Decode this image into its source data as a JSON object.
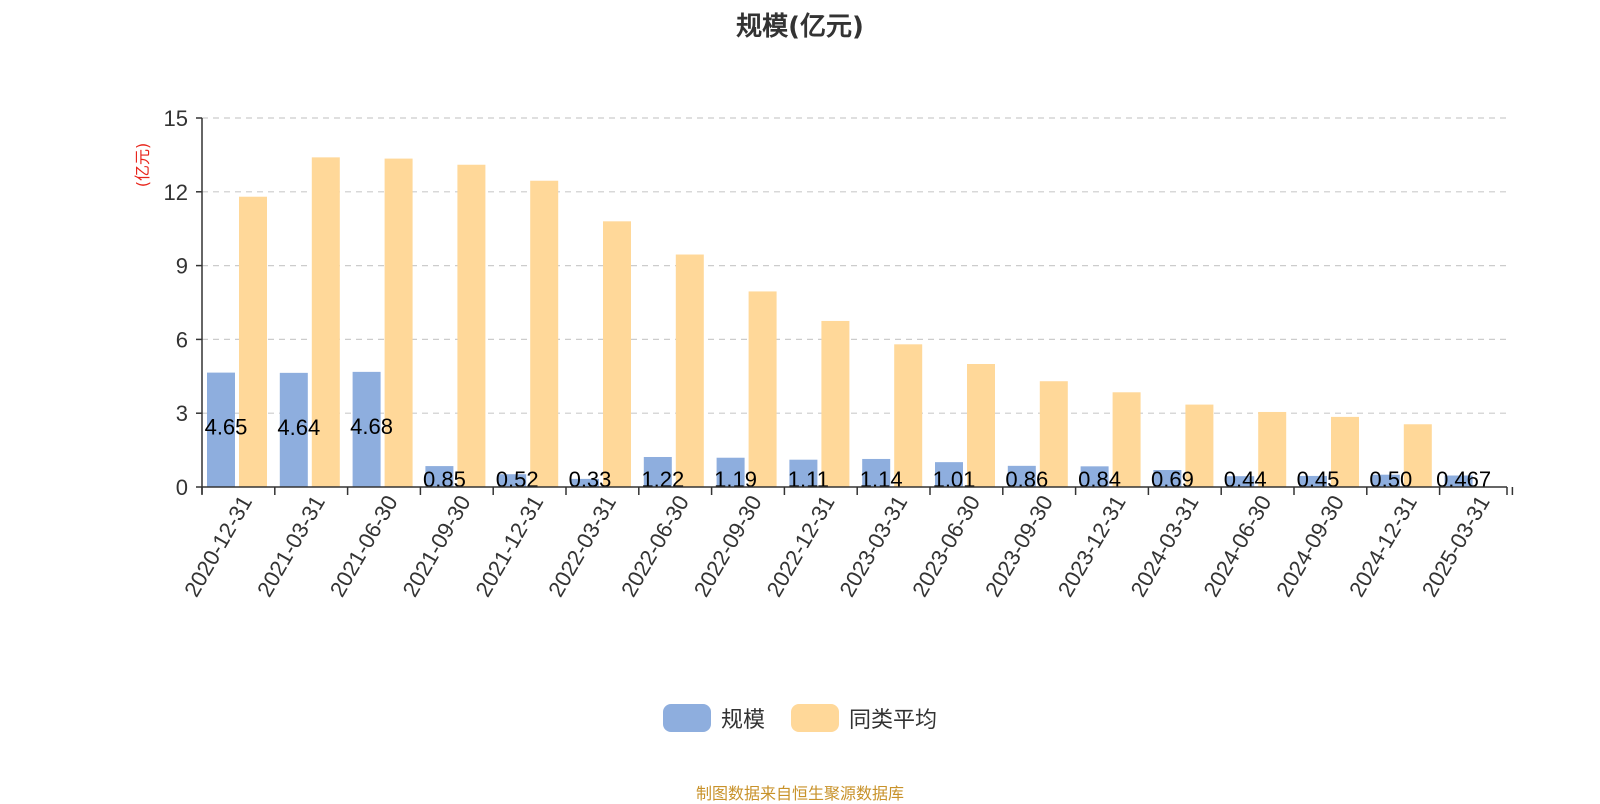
{
  "chart_data": {
    "type": "bar",
    "title": "规模(亿元)",
    "ylabel": "(亿元)",
    "ylim": [
      0,
      15
    ],
    "yticks": [
      0,
      3,
      6,
      9,
      12,
      15
    ],
    "grid": true,
    "legend_position": "bottom-center",
    "categories": [
      "2020-12-31",
      "2021-03-31",
      "2021-06-30",
      "2021-09-30",
      "2021-12-31",
      "2022-03-31",
      "2022-06-30",
      "2022-09-30",
      "2022-12-31",
      "2023-03-31",
      "2023-06-30",
      "2023-09-30",
      "2023-12-31",
      "2024-03-31",
      "2024-06-30",
      "2024-09-30",
      "2024-12-31",
      "2025-03-31"
    ],
    "series": [
      {
        "name": "规模",
        "color": "#8eaede",
        "values": [
          4.65,
          4.64,
          4.68,
          0.85,
          0.52,
          0.33,
          1.22,
          1.19,
          1.11,
          1.14,
          1.01,
          0.86,
          0.84,
          0.69,
          0.44,
          0.45,
          0.5,
          0.467
        ],
        "labels": [
          "4.65",
          "4.64",
          "4.68",
          "0.85",
          "0.52",
          "0.33",
          "1.22",
          "1.19",
          "1.11",
          "1.14",
          "1.01",
          "0.86",
          "0.84",
          "0.69",
          "0.44",
          "0.45",
          "0.50",
          "0.467"
        ]
      },
      {
        "name": "同类平均",
        "color": "#ffd899",
        "values": [
          11.8,
          13.4,
          13.35,
          13.1,
          12.45,
          10.8,
          9.45,
          7.95,
          6.75,
          5.8,
          5.0,
          4.3,
          3.85,
          3.35,
          3.05,
          2.85,
          2.55,
          null
        ]
      }
    ]
  },
  "source_note": "制图数据来自恒生聚源数据库"
}
